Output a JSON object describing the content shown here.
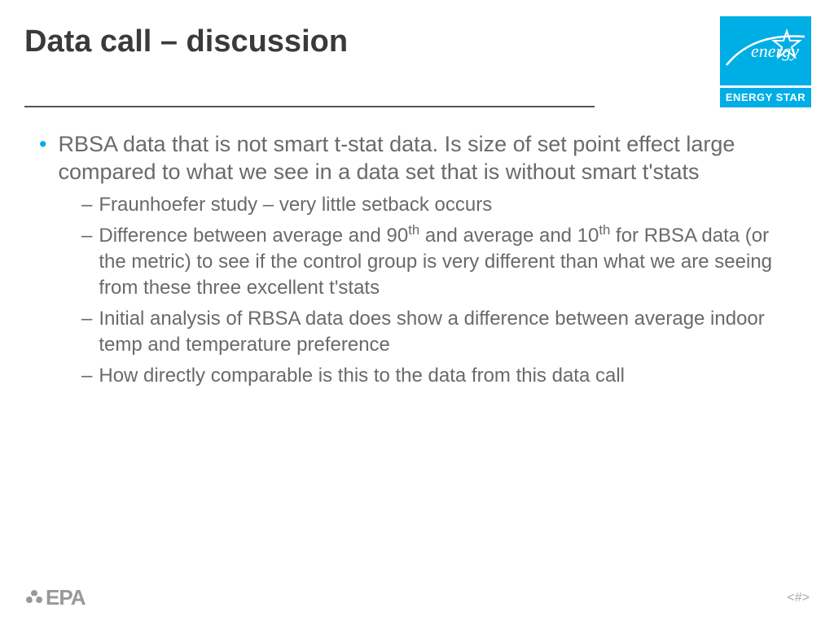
{
  "title": "Data call – discussion",
  "logo": {
    "script_text": "energy",
    "label": "ENERGY STAR",
    "bg_color": "#00aee6"
  },
  "bullet": {
    "main": "RBSA data that is not smart t-stat data.  Is size of set point effect large compared to what we see in a data set that is without smart t'stats",
    "subs": [
      "Fraunhoefer study – very little setback occurs",
      "Difference between average and 90<sup>th</sup> and average and 10<sup>th</sup> for RBSA data (or the metric) to see if the control group is very different than what we are seeing from these three excellent t'stats",
      "Initial analysis of RBSA data does show a difference between average indoor temp and temperature preference",
      "How directly comparable is this to the data from this data call"
    ]
  },
  "footer": {
    "epa": "EPA",
    "page_number": "<#>"
  },
  "colors": {
    "title": "#3a3a3a",
    "body_text": "#6a6a6a",
    "bullet_accent": "#00aee6",
    "footer_gray": "#999999"
  }
}
